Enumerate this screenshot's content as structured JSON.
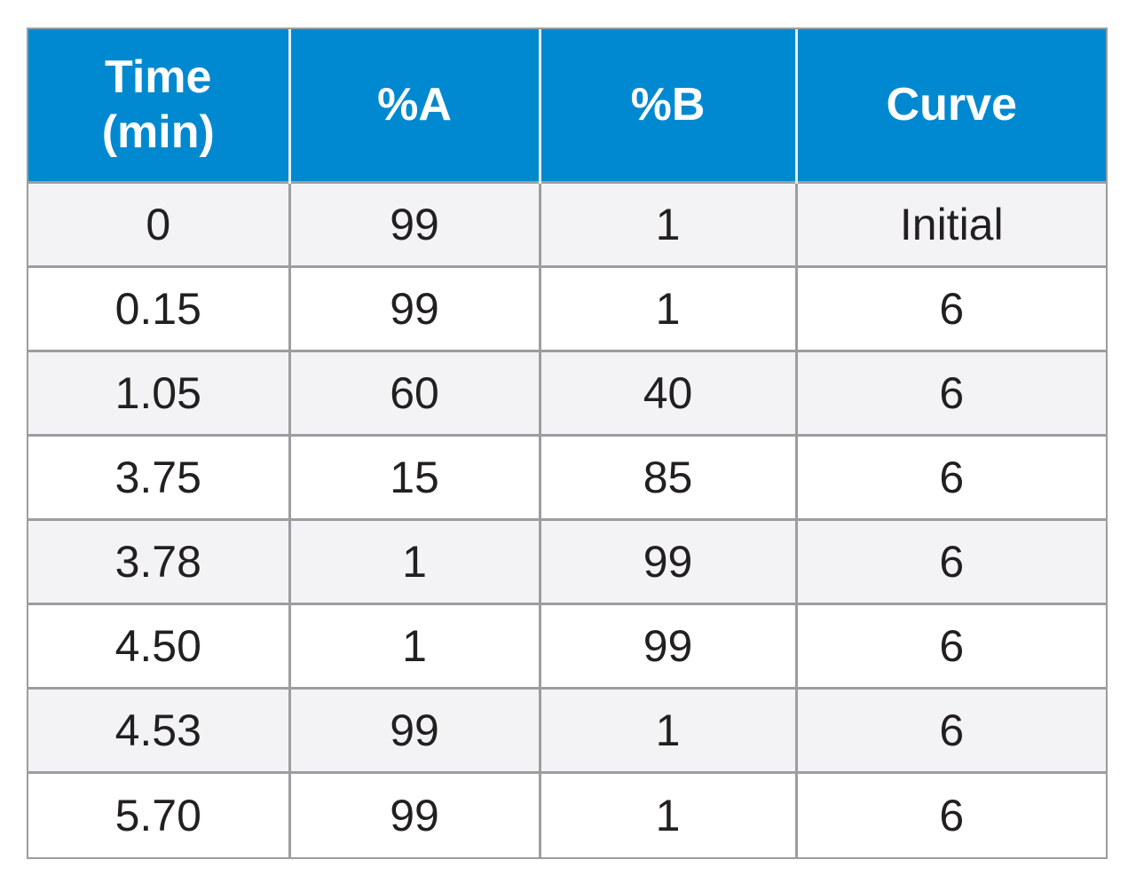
{
  "table": {
    "headers": [
      {
        "line1": "Time",
        "line2": "(min)"
      },
      {
        "line1": "%A",
        "line2": ""
      },
      {
        "line1": "%B",
        "line2": ""
      },
      {
        "line1": "Curve",
        "line2": ""
      }
    ],
    "rows": [
      [
        "0",
        "99",
        "1",
        "Initial"
      ],
      [
        "0.15",
        "99",
        "1",
        "6"
      ],
      [
        "1.05",
        "60",
        "40",
        "6"
      ],
      [
        "3.75",
        "15",
        "85",
        "6"
      ],
      [
        "3.78",
        "1",
        "99",
        "6"
      ],
      [
        "4.50",
        "1",
        "99",
        "6"
      ],
      [
        "4.53",
        "99",
        "1",
        "6"
      ],
      [
        "5.70",
        "99",
        "1",
        "6"
      ]
    ]
  },
  "colors": {
    "header_background": "#0089d0",
    "header_text": "#ffffff",
    "row_shaded": "#f3f3f5",
    "row_plain": "#ffffff",
    "grid_lines": "#9b9da0",
    "body_text": "#231f20"
  }
}
